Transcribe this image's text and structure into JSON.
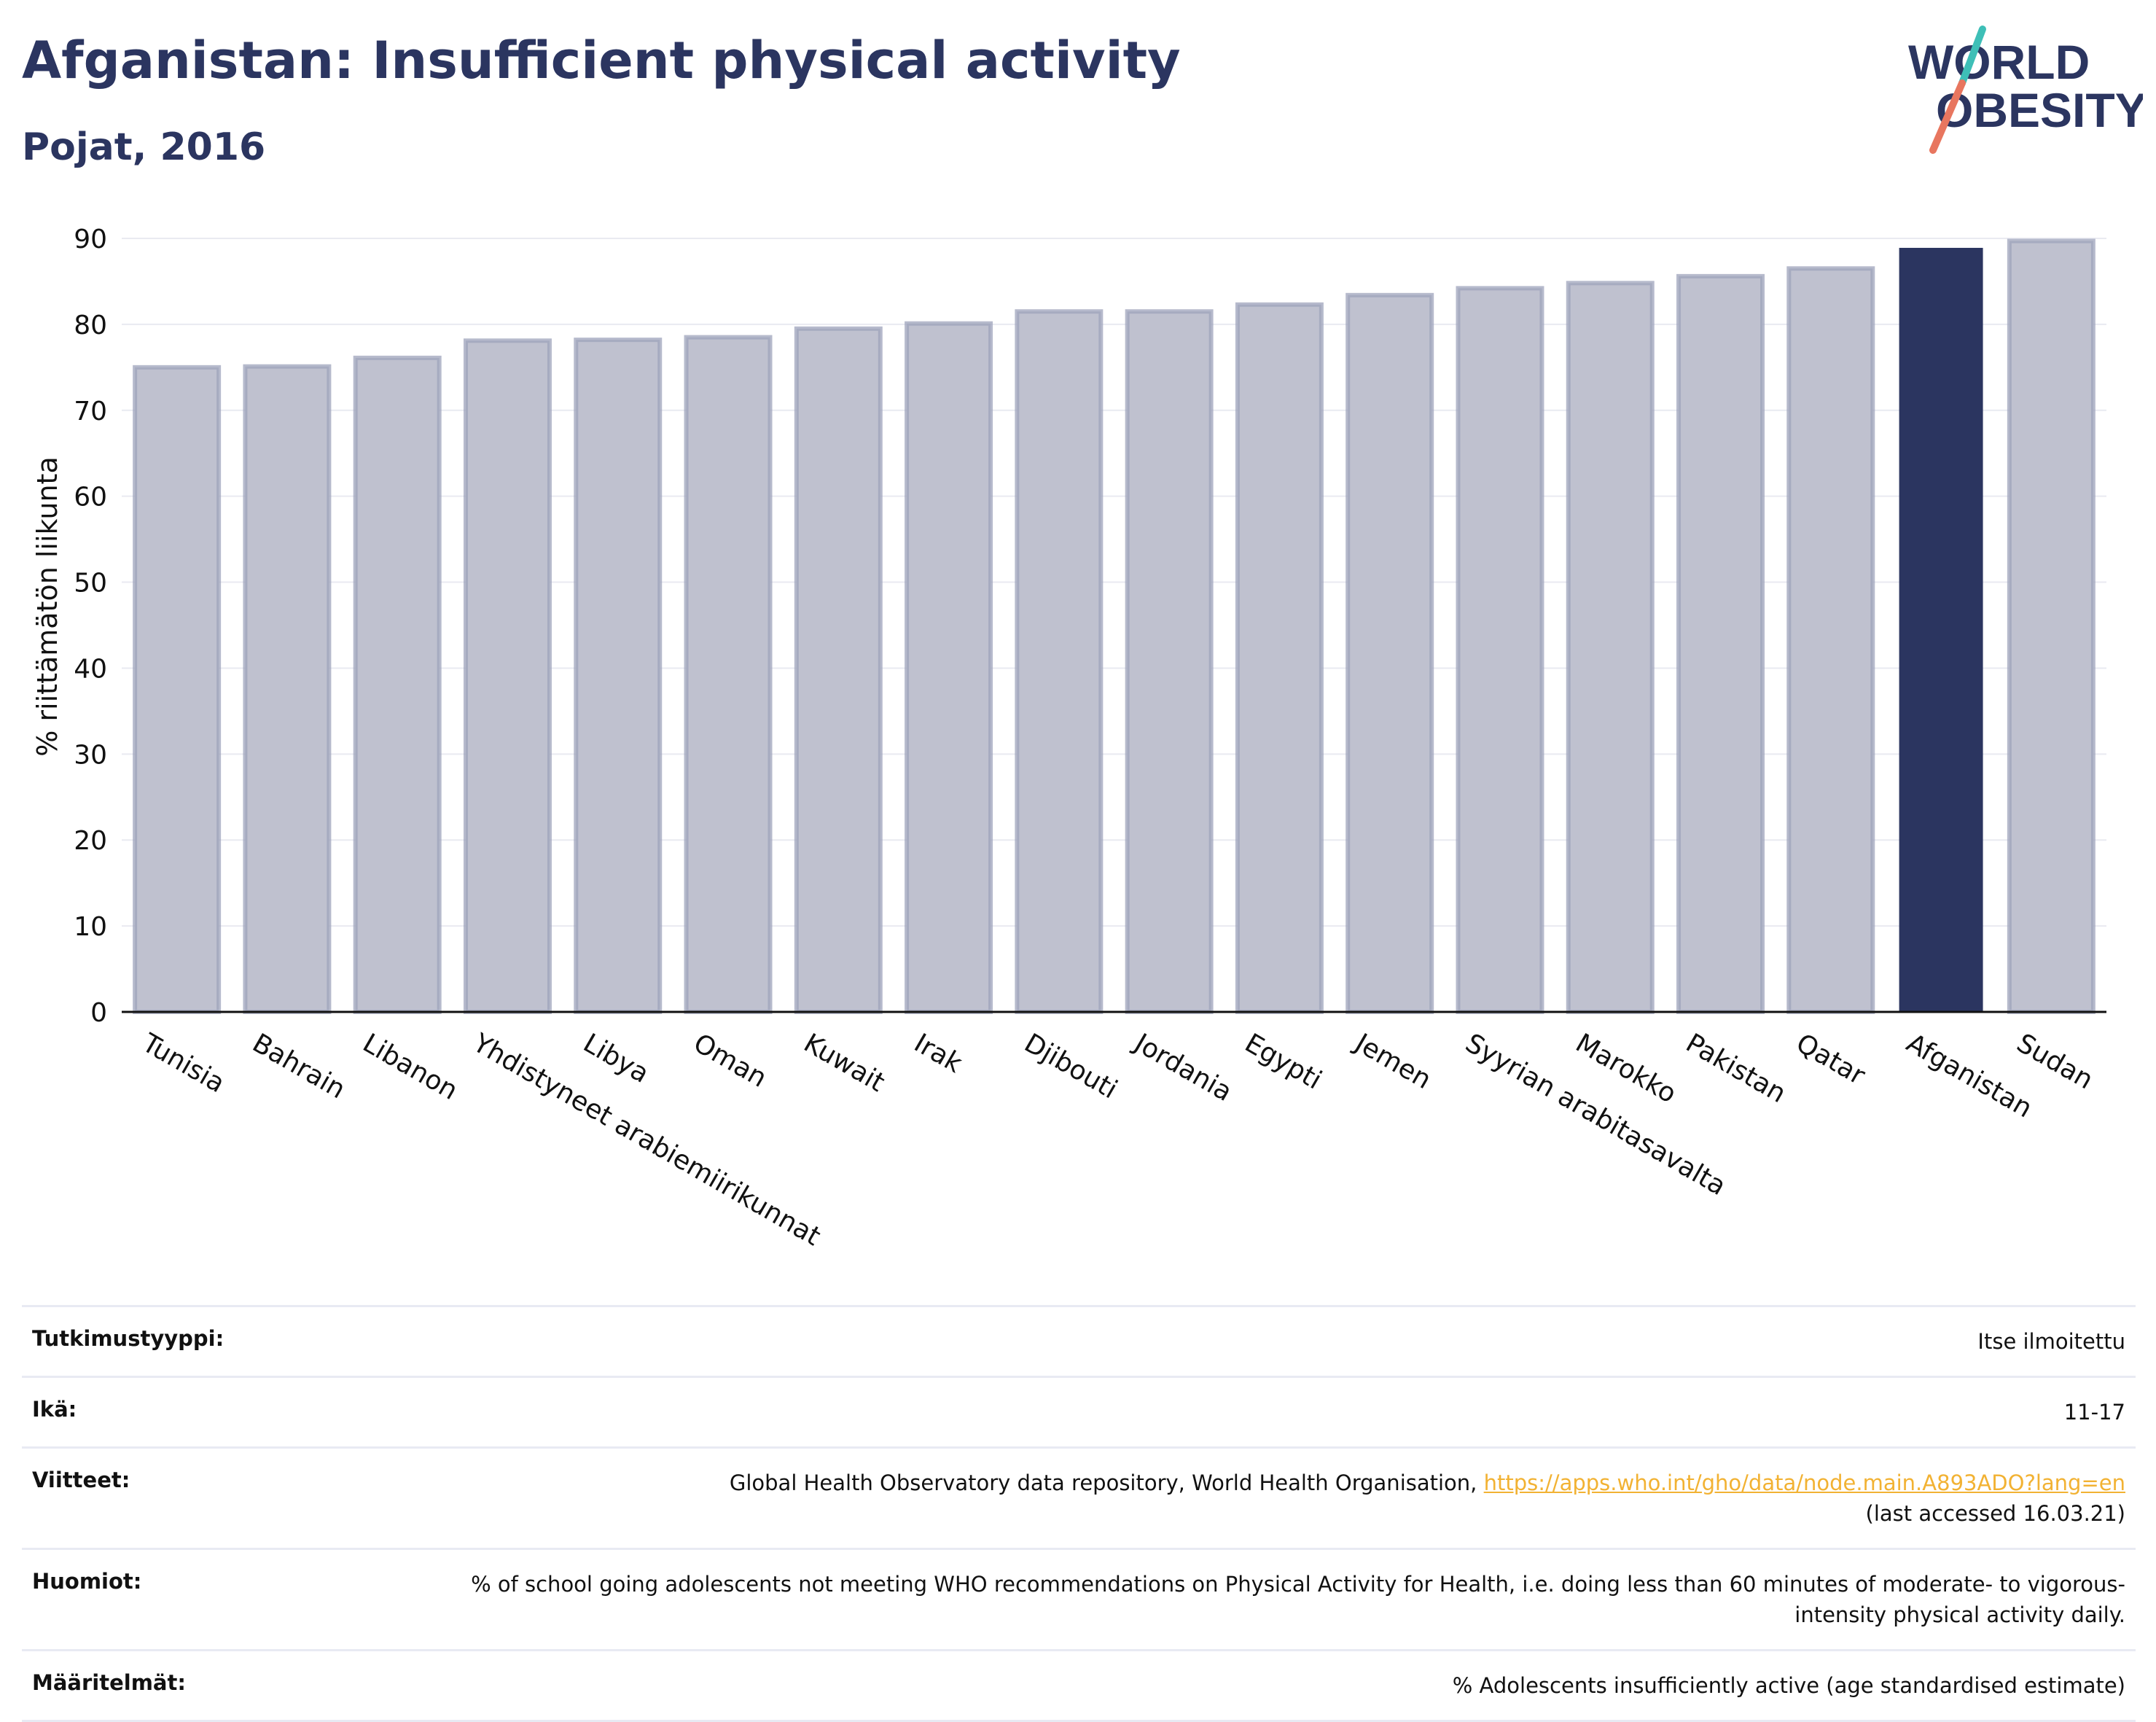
{
  "header": {
    "title": "Afganistan: Insufficient physical activity",
    "subtitle": "Pojat, 2016"
  },
  "logo": {
    "line1": "WORLD",
    "line2": "OBESITY"
  },
  "colors": {
    "highlight": "#2b3560",
    "bar": "#bfc1cf",
    "bar_border": "#9ea3bb",
    "logo_teal": "#3ebfb7",
    "logo_coral": "#e8765f",
    "link": "#f2b233"
  },
  "chart_data": {
    "type": "bar",
    "title": "Afganistan: Insufficient physical activity",
    "subtitle": "Pojat, 2016",
    "ylabel": "% riittämätön liikunta",
    "xlabel": "",
    "ylim": [
      0,
      90
    ],
    "yticks": [
      0,
      10,
      20,
      30,
      40,
      50,
      60,
      70,
      80,
      90
    ],
    "grid": true,
    "highlight": "Afganistan",
    "categories": [
      "Tunisia",
      "Bahrain",
      "Libanon",
      "Yhdistyneet arabiemiirikunnat",
      "Libya",
      "Oman",
      "Kuwait",
      "Irak",
      "Djibouti",
      "Jordania",
      "Egypti",
      "Jemen",
      "Syyrian arabitasavalta",
      "Marokko",
      "Pakistan",
      "Qatar",
      "Afganistan",
      "Sudan"
    ],
    "values": [
      75.0,
      75.1,
      76.1,
      78.1,
      78.2,
      78.5,
      79.5,
      80.1,
      81.5,
      81.5,
      82.3,
      83.4,
      84.2,
      84.8,
      85.6,
      86.5,
      88.9,
      89.7
    ]
  },
  "info": [
    {
      "key": "Tutkimustyyppi:",
      "value": "Itse ilmoitettu"
    },
    {
      "key": "Ikä:",
      "value": "11-17"
    },
    {
      "key": "Viitteet:",
      "value": "Global Health Observatory data repository, World Health Organisation,",
      "link": "https://apps.who.int/gho/data/node.main.A893ADO?lang=en",
      "note": "(last accessed 16.03.21)"
    },
    {
      "key": "Huomiot:",
      "value": "% of school going adolescents not meeting WHO recommendations on Physical Activity for Health, i.e. doing less than 60 minutes of moderate- to vigorous-intensity physical activity daily."
    },
    {
      "key": "Määritelmät:",
      "value": "% Adolescents insufficiently active (age standardised estimate)"
    }
  ]
}
